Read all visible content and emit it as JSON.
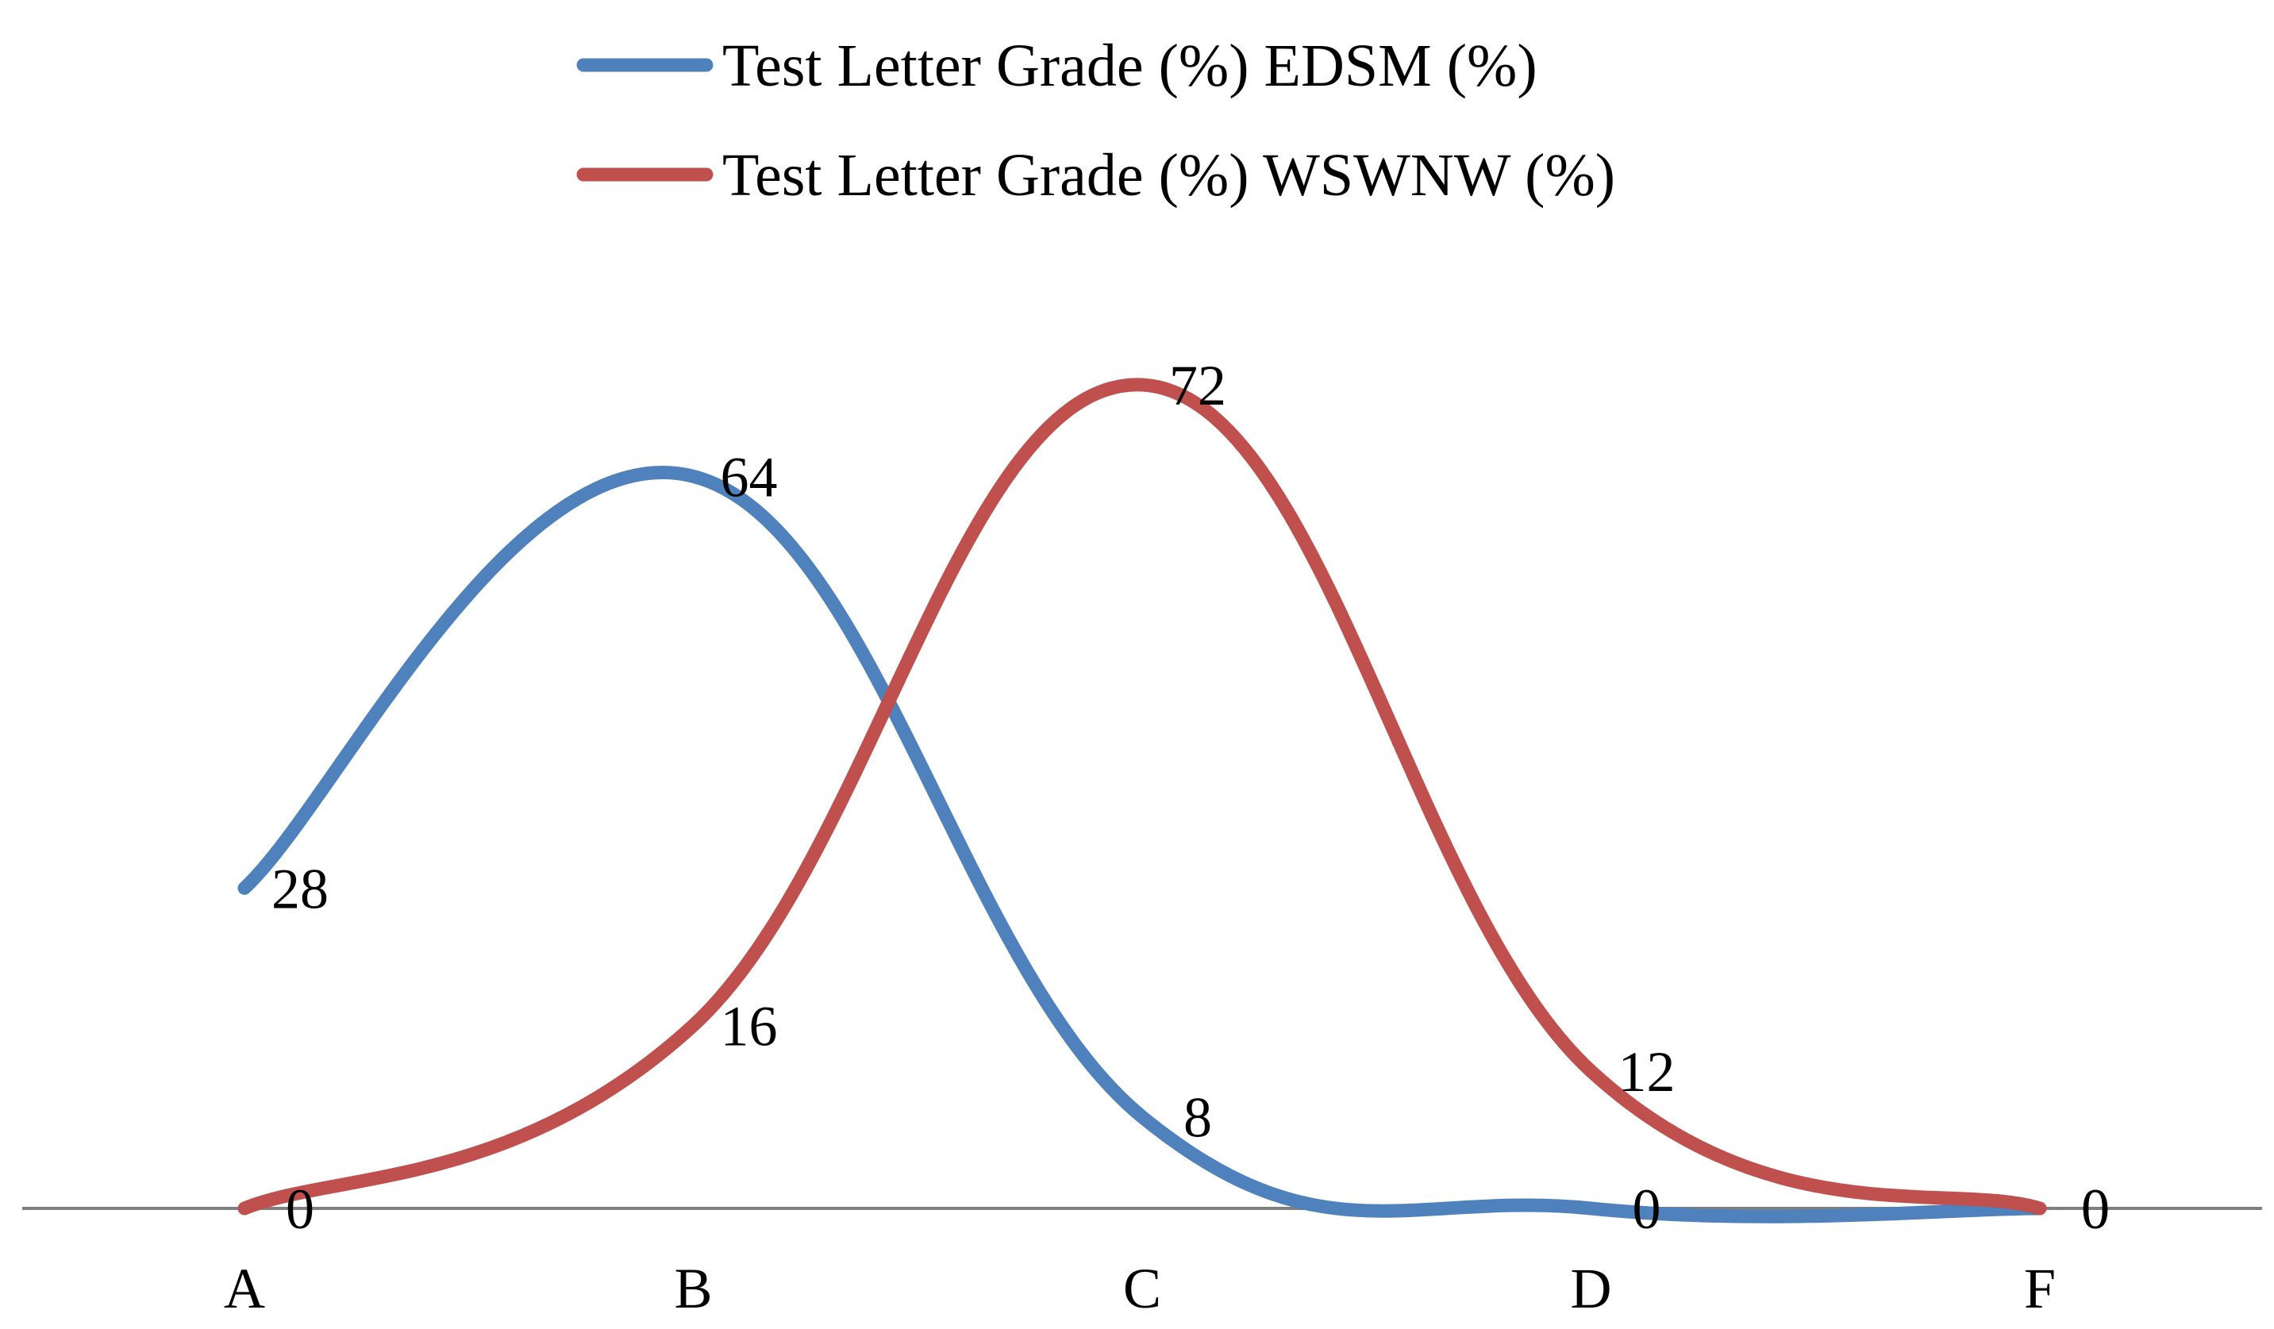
{
  "chart_data": {
    "type": "line",
    "smooth": true,
    "categories": [
      "A",
      "B",
      "C",
      "D",
      "F"
    ],
    "series": [
      {
        "name": "Test Letter Grade (%)  EDSM (%)",
        "values": [
          28,
          64,
          8,
          0,
          0
        ],
        "labels": [
          "28",
          "64",
          "8",
          "0",
          "0"
        ],
        "color": "#4F81BD"
      },
      {
        "name": "Test Letter Grade (%)  WSWNW (%)",
        "values": [
          0,
          16,
          72,
          12,
          0
        ],
        "labels": [
          "0",
          "16",
          "72",
          "12",
          "0"
        ],
        "color": "#C0504D"
      }
    ],
    "ylim": [
      0,
      72
    ],
    "axis_color": "#7F7F7F",
    "grid": false,
    "legend_position": "top",
    "data_labels": true
  }
}
